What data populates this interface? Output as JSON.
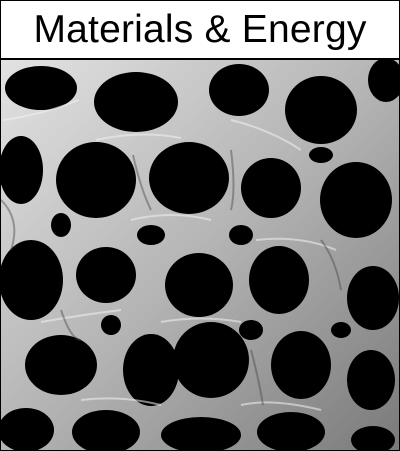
{
  "header": {
    "title": "Materials & Energy"
  },
  "image": {
    "icon": "porous-foam-micrograph-image",
    "colors": {
      "pore": "#000000",
      "strut_light": "#d6d6d6",
      "strut_mid": "#a9a9a9",
      "strut_dark": "#6f6f6f",
      "band": "#ffffff",
      "text": "#000000"
    }
  }
}
